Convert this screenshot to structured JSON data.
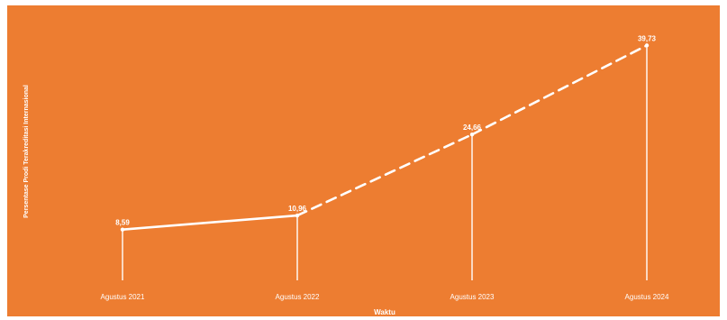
{
  "colors": {
    "background": "#ED7D31",
    "foreground": "#FFFFFF"
  },
  "chart_data": {
    "type": "line",
    "title": "",
    "xlabel": "Waktu",
    "ylabel": "Persentase Prodi Terakreditasi Internasional",
    "categories": [
      "Agustus 2021",
      "Agustus 2022",
      "Agustus 2023",
      "Agustus 2024"
    ],
    "series": [
      {
        "values": [
          8.59,
          10.96,
          24.66,
          39.73
        ],
        "labels": [
          "8,59",
          "10,96",
          "24,66",
          "39,73"
        ],
        "line_style": [
          "solid",
          "dashed",
          "dashed"
        ]
      }
    ],
    "ylim": [
      0,
      40
    ],
    "grid": false,
    "legend": "none"
  }
}
